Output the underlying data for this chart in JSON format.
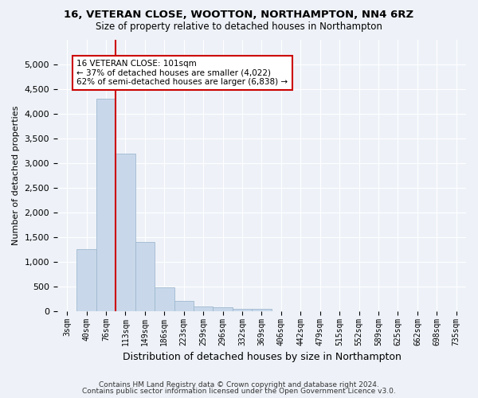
{
  "title": "16, VETERAN CLOSE, WOOTTON, NORTHAMPTON, NN4 6RZ",
  "subtitle": "Size of property relative to detached houses in Northampton",
  "xlabel": "Distribution of detached houses by size in Northampton",
  "ylabel": "Number of detached properties",
  "bar_color": "#c8d8ea",
  "bar_edge_color": "#a0b8d0",
  "bar_categories": [
    "3sqm",
    "40sqm",
    "76sqm",
    "113sqm",
    "149sqm",
    "186sqm",
    "223sqm",
    "259sqm",
    "296sqm",
    "332sqm",
    "369sqm",
    "406sqm",
    "442sqm",
    "479sqm",
    "515sqm",
    "552sqm",
    "589sqm",
    "625sqm",
    "662sqm",
    "698sqm",
    "735sqm"
  ],
  "bar_values": [
    0,
    1250,
    4300,
    3200,
    1400,
    480,
    200,
    90,
    70,
    50,
    50,
    0,
    0,
    0,
    0,
    0,
    0,
    0,
    0,
    0,
    0
  ],
  "vline_x_index": 2,
  "vline_color": "#cc0000",
  "ylim": [
    0,
    5500
  ],
  "yticks": [
    0,
    500,
    1000,
    1500,
    2000,
    2500,
    3000,
    3500,
    4000,
    4500,
    5000
  ],
  "annotation_title": "16 VETERAN CLOSE: 101sqm",
  "annotation_line2": "← 37% of detached houses are smaller (4,022)",
  "annotation_line3": "62% of semi-detached houses are larger (6,838) →",
  "footer1": "Contains HM Land Registry data © Crown copyright and database right 2024.",
  "footer2": "Contains public sector information licensed under the Open Government Licence v3.0.",
  "background_color": "#eef2f8",
  "grid_color": "#ffffff"
}
